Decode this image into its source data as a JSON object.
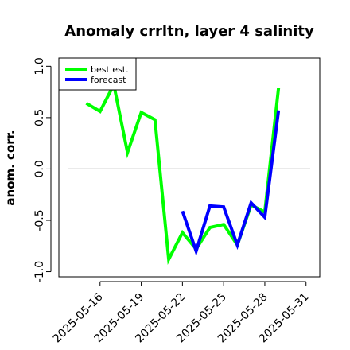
{
  "chart_data": {
    "type": "line",
    "title": "Anomaly crrltn, layer 4 salinity",
    "xlabel": "",
    "ylabel": "anom. corr.",
    "ylim": [
      -1.05,
      1.08
    ],
    "yticks": [
      "-1.0",
      "-0.5",
      "0.0",
      "0.5",
      "1.0"
    ],
    "xlim": [
      "2025-05-13",
      "2025-06-01"
    ],
    "xticks": [
      "2025-05-16",
      "2025-05-19",
      "2025-05-22",
      "2025-05-25",
      "2025-05-28",
      "2025-05-31"
    ],
    "highlight_tick": "2025-05-22",
    "highlight_color": "#228b22",
    "zero_line": 0.0,
    "grid": false,
    "legend_position": "top-left",
    "series": [
      {
        "name": "best est.",
        "color": "#00ff00",
        "x": [
          "2025-05-15",
          "2025-05-16",
          "2025-05-17",
          "2025-05-18",
          "2025-05-19",
          "2025-05-20",
          "2025-05-21",
          "2025-05-22",
          "2025-05-23",
          "2025-05-24",
          "2025-05-25",
          "2025-05-26",
          "2025-05-27",
          "2025-05-28",
          "2025-05-29"
        ],
        "values": [
          0.64,
          0.56,
          0.82,
          0.16,
          0.55,
          0.48,
          -0.88,
          -0.62,
          -0.78,
          -0.57,
          -0.54,
          -0.74,
          -0.35,
          -0.42,
          0.79
        ]
      },
      {
        "name": "forecast",
        "color": "#0000ff",
        "x": [
          "2025-05-22",
          "2025-05-23",
          "2025-05-24",
          "2025-05-25",
          "2025-05-26",
          "2025-05-27",
          "2025-05-28",
          "2025-05-29"
        ],
        "values": [
          -0.41,
          -0.8,
          -0.36,
          -0.37,
          -0.74,
          -0.33,
          -0.47,
          0.57
        ]
      }
    ]
  }
}
